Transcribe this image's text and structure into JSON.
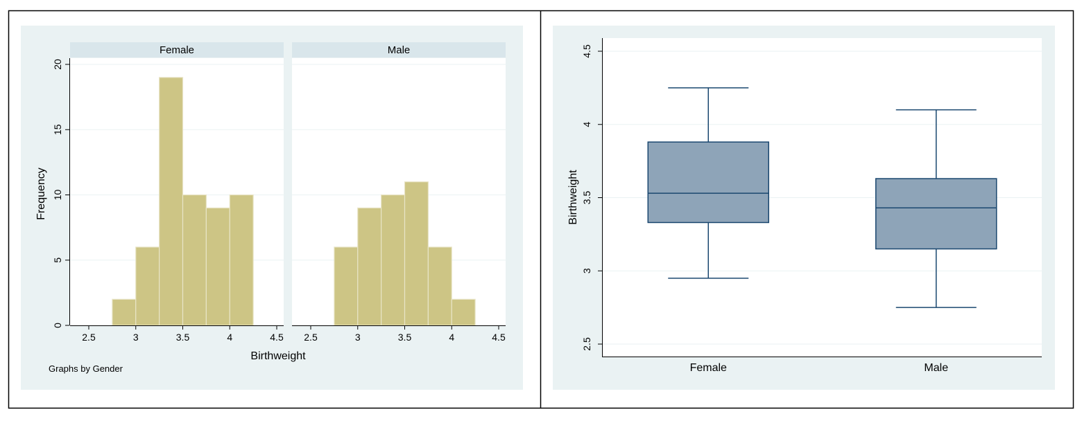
{
  "colors": {
    "panel_bg": "#eaf2f3",
    "plot_bg": "#ffffff",
    "strip_bg": "#d9e6eb",
    "bar_fill": "#cdc585",
    "bar_edge": "#e8e4c6",
    "box_fill": "#8ea4b8",
    "box_edge": "#1a476f",
    "grid": "#eaf2f3",
    "axis": "#000000",
    "frame": "#000000"
  },
  "chart_data": [
    {
      "type": "bar",
      "subtype": "histogram",
      "ylabel": "Frequency",
      "xlabel": "Birthweight",
      "note": "Graphs by Gender",
      "ylim": [
        0,
        20
      ],
      "yticks": [
        "0",
        "5",
        "10",
        "15",
        "20"
      ],
      "xlim": [
        2.5,
        4.5
      ],
      "xticks": [
        "2.5",
        "3",
        "3.5",
        "4",
        "4.5"
      ],
      "grid": true,
      "bin_edges": [
        2.75,
        3.0,
        3.25,
        3.5,
        3.75,
        4.0,
        4.25
      ],
      "panels": [
        {
          "name": "Female",
          "values": [
            2,
            6,
            19,
            10,
            9,
            10
          ]
        },
        {
          "name": "Male",
          "values": [
            6,
            9,
            10,
            11,
            6,
            2
          ]
        }
      ]
    },
    {
      "type": "box",
      "ylabel": "Birthweight",
      "ylim": [
        2.5,
        4.5
      ],
      "yticks": [
        "2.5",
        "3",
        "3.5",
        "4",
        "4.5"
      ],
      "grid": true,
      "categories": [
        "Female",
        "Male"
      ],
      "boxes": [
        {
          "name": "Female",
          "whisker_low": 2.95,
          "q1": 3.33,
          "median": 3.53,
          "q3": 3.88,
          "whisker_high": 4.25
        },
        {
          "name": "Male",
          "whisker_low": 2.75,
          "q1": 3.15,
          "median": 3.43,
          "q3": 3.63,
          "whisker_high": 4.1
        }
      ]
    }
  ]
}
